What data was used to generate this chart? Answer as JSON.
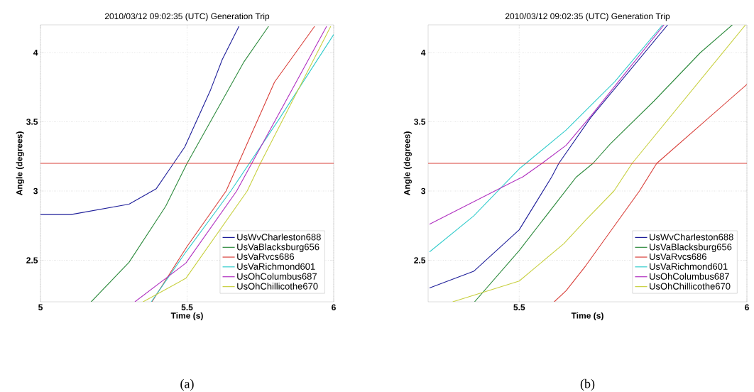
{
  "chart_data": [
    {
      "type": "line",
      "title": "2010/03/12  09:02:35 (UTC)  Generation Trip",
      "xlabel": "Time (s)",
      "ylabel": "Angle (degrees)",
      "xlim": [
        5,
        6
      ],
      "ylim": [
        2.2,
        4.2
      ],
      "xticks": [
        5,
        5.5,
        6
      ],
      "yticks": [
        2.5,
        3,
        3.5,
        4
      ],
      "grid": true,
      "legend": "bottom right",
      "annotations": [
        "(a)"
      ],
      "ref_lines": [
        {
          "axis": "y",
          "value": 3.2,
          "color": "#d9403a"
        }
      ],
      "series": [
        {
          "name": "UsWvCharleston688",
          "color": "#1f1f9a",
          "x": [
            5,
            5.104,
            5.302,
            5.395,
            5.492,
            5.58,
            5.62,
            5.677
          ],
          "values": [
            2.83,
            2.83,
            2.905,
            3.017,
            3.318,
            3.73,
            3.95,
            4.19
          ]
        },
        {
          "name": "UsVaBlacksburg656",
          "color": "#2e8b3e",
          "x": [
            5.173,
            5.302,
            5.427,
            5.5,
            5.693,
            5.778
          ],
          "values": [
            2.2,
            2.485,
            2.89,
            3.2,
            3.93,
            4.19
          ]
        },
        {
          "name": "UsVaRvcs686",
          "color": "#d9403a",
          "x": [
            5.38,
            5.5,
            5.633,
            5.798,
            5.935
          ],
          "values": [
            2.2,
            2.6,
            3.0,
            3.786,
            4.19
          ]
        },
        {
          "name": "UsVaRichmond601",
          "color": "#33cccc",
          "x": [
            5.378,
            5.496,
            5.649,
            5.814,
            6.0
          ],
          "values": [
            2.2,
            2.56,
            3.0,
            3.52,
            4.13
          ]
        },
        {
          "name": "UsOhColumbus687",
          "color": "#b030c0",
          "x": [
            5.322,
            5.496,
            5.669,
            5.976
          ],
          "values": [
            2.2,
            2.48,
            3.0,
            4.19
          ]
        },
        {
          "name": "UsOhChillicothe670",
          "color": "#c8d040",
          "x": [
            5.35,
            5.496,
            5.705,
            5.75,
            5.99
          ],
          "values": [
            2.2,
            2.37,
            3.0,
            3.2,
            4.19
          ]
        }
      ]
    },
    {
      "type": "line",
      "title": "2010/03/12  09:02:35 (UTC)  Generation Trip",
      "xlabel": "Time (s)",
      "ylabel": "Angle (degrees)",
      "xlim": [
        5.3,
        6
      ],
      "ylim": [
        2.2,
        4.2
      ],
      "xticks": [
        5.5,
        6
      ],
      "yticks": [
        2.5,
        3,
        3.5,
        4
      ],
      "grid": true,
      "legend": "bottom right",
      "annotations": [
        "(b)"
      ],
      "ref_lines": [
        {
          "axis": "y",
          "value": 3.2,
          "color": "#d9403a"
        }
      ],
      "series": [
        {
          "name": "UsWvCharleston688",
          "color": "#1f1f9a",
          "x": [
            5.303,
            5.4,
            5.5,
            5.571,
            5.587,
            5.657,
            5.826
          ],
          "values": [
            2.3,
            2.42,
            2.72,
            3.1,
            3.2,
            3.53,
            4.2
          ]
        },
        {
          "name": "UsVaBlacksburg656",
          "color": "#2e8b3e",
          "x": [
            5.402,
            5.5,
            5.625,
            5.662,
            5.7,
            5.796,
            5.898,
            5.968
          ],
          "values": [
            2.2,
            2.57,
            3.1,
            3.2,
            3.34,
            3.65,
            4.0,
            4.2
          ]
        },
        {
          "name": "UsVaRvcs686",
          "color": "#d9403a",
          "x": [
            5.577,
            5.603,
            5.646,
            5.764,
            5.802,
            6.0
          ],
          "values": [
            2.2,
            2.28,
            2.46,
            3.0,
            3.2,
            3.77
          ]
        },
        {
          "name": "UsVaRichmond601",
          "color": "#33cccc",
          "x": [
            5.303,
            5.4,
            5.5,
            5.603,
            5.71,
            5.815
          ],
          "values": [
            2.56,
            2.82,
            3.16,
            3.44,
            3.79,
            4.2
          ]
        },
        {
          "name": "UsOhColumbus687",
          "color": "#b030c0",
          "x": [
            5.303,
            5.5,
            5.507,
            5.55,
            5.603,
            5.657,
            5.818
          ],
          "values": [
            2.76,
            3.09,
            3.1,
            3.2,
            3.33,
            3.54,
            4.2
          ]
        },
        {
          "name": "UsOhChillicothe670",
          "color": "#c8d040",
          "x": [
            5.354,
            5.5,
            5.598,
            5.646,
            5.708,
            5.748,
            5.997
          ],
          "values": [
            2.2,
            2.35,
            2.62,
            2.79,
            3.0,
            3.2,
            4.2
          ]
        }
      ]
    }
  ]
}
